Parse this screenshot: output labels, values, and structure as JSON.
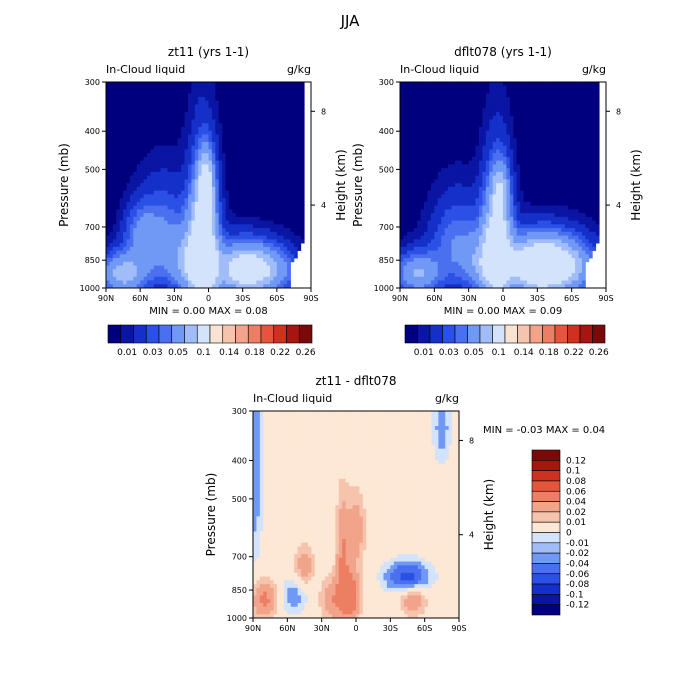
{
  "title": "JJA",
  "palettes": {
    "top": [
      "#00007e",
      "#0a15a3",
      "#1530c8",
      "#2a50e6",
      "#4a70f0",
      "#7098f5",
      "#a0bdf9",
      "#d2e3fb",
      "#fbe1d0",
      "#f6c4ad",
      "#f1a48a",
      "#ec7f63",
      "#e5553c",
      "#cd3120",
      "#a61510",
      "#7a0a0a"
    ],
    "diff": [
      "#00007e",
      "#0a15a3",
      "#1530c8",
      "#2a50e6",
      "#4a70f0",
      "#7098f5",
      "#a0bdf9",
      "#d2e3fb",
      "#fde7d5",
      "#f6c4ad",
      "#f1a48a",
      "#ec7f63",
      "#e5553c",
      "#cd3120",
      "#a61510",
      "#7a0a0a"
    ]
  },
  "chart_data": [
    {
      "type": "heatmap",
      "title": "zt11 (yrs 1-1)",
      "subtitle_left": "In-Cloud liquid",
      "units": "g/kg",
      "ylabel": "Pressure (mb)",
      "ylabel_right": "Height (km)",
      "x_ticks": [
        "90N",
        "60N",
        "30N",
        "0",
        "30S",
        "60S",
        "90S"
      ],
      "y_ticks": [
        "300",
        "400",
        "500",
        "700",
        "850",
        "1000"
      ],
      "y_ticks_right": [
        "8",
        "4"
      ],
      "stats": "MIN =   0.00   MAX =   0.08",
      "colorbar_labels": [
        "0.01",
        "0.03",
        "0.05",
        "0.1",
        "0.14",
        "0.18",
        "0.22",
        "0.26"
      ],
      "zlim": [
        0.0,
        0.08
      ],
      "scale": "top",
      "features": [
        {
          "lat": 5,
          "p": 800,
          "dlat": 9,
          "dp": 210,
          "amp": 0.06
        },
        {
          "lat": 2,
          "p": 540,
          "dlat": 5,
          "dp": 70,
          "amp": 0.03
        },
        {
          "lat": 2,
          "p": 880,
          "dlat": 6,
          "dp": 80,
          "amp": 0.02
        },
        {
          "lat": -45,
          "p": 900,
          "dlat": 20,
          "dp": 90,
          "amp": 0.04
        },
        {
          "lat": -25,
          "p": 900,
          "dlat": 15,
          "dp": 100,
          "amp": 0.025
        },
        {
          "lat": 40,
          "p": 760,
          "dlat": 16,
          "dp": 150,
          "amp": 0.022
        },
        {
          "lat": 75,
          "p": 920,
          "dlat": 14,
          "dp": 80,
          "amp": 0.035
        },
        {
          "lat": 60,
          "p": 720,
          "dlat": 10,
          "dp": 80,
          "amp": 0.015
        },
        {
          "lat": 20,
          "p": 880,
          "dlat": 10,
          "dp": 100,
          "amp": 0.02
        }
      ]
    },
    {
      "type": "heatmap",
      "title": "dflt078 (yrs 1-1)",
      "subtitle_left": "In-Cloud liquid",
      "units": "g/kg",
      "ylabel": "Pressure (mb)",
      "ylabel_right": "Height (km)",
      "x_ticks": [
        "90N",
        "60N",
        "30N",
        "0",
        "30S",
        "60S",
        "90S"
      ],
      "y_ticks": [
        "300",
        "400",
        "500",
        "700",
        "850",
        "1000"
      ],
      "y_ticks_right": [
        "8",
        "4"
      ],
      "stats": "MIN =   0.00   MAX =   0.09",
      "colorbar_labels": [
        "0.01",
        "0.03",
        "0.05",
        "0.1",
        "0.14",
        "0.18",
        "0.22",
        "0.26"
      ],
      "zlim": [
        0.0,
        0.09
      ],
      "scale": "top",
      "features": [
        {
          "lat": 5,
          "p": 800,
          "dlat": 9,
          "dp": 200,
          "amp": 0.055
        },
        {
          "lat": 2,
          "p": 560,
          "dlat": 5,
          "dp": 60,
          "amp": 0.02
        },
        {
          "lat": -45,
          "p": 880,
          "dlat": 22,
          "dp": 100,
          "amp": 0.055
        },
        {
          "lat": -25,
          "p": 880,
          "dlat": 15,
          "dp": 100,
          "amp": 0.03
        },
        {
          "lat": 40,
          "p": 780,
          "dlat": 16,
          "dp": 140,
          "amp": 0.02
        },
        {
          "lat": 75,
          "p": 920,
          "dlat": 14,
          "dp": 80,
          "amp": 0.03
        },
        {
          "lat": 20,
          "p": 880,
          "dlat": 10,
          "dp": 100,
          "amp": 0.018
        }
      ]
    },
    {
      "type": "heatmap",
      "title": "zt11 - dflt078",
      "subtitle_left": "In-Cloud liquid",
      "units": "g/kg",
      "ylabel": "Pressure (mb)",
      "ylabel_right": "Height (km)",
      "x_ticks": [
        "90N",
        "60N",
        "30N",
        "0",
        "30S",
        "60S",
        "90S"
      ],
      "y_ticks": [
        "300",
        "400",
        "500",
        "700",
        "850",
        "1000"
      ],
      "y_ticks_right": [
        "8",
        "4"
      ],
      "stats": "MIN =   -0.03   MAX =   0.04",
      "colorbar_labels": [
        "0.12",
        "0.1",
        "0.08",
        "0.06",
        "0.04",
        "0.02",
        "0.01",
        "0",
        "-0.01",
        "-0.02",
        "-0.04",
        "-0.06",
        "-0.08",
        "-0.1",
        "-0.12"
      ],
      "zlim": [
        -0.03,
        0.04
      ],
      "scale": "diff",
      "features": [
        {
          "lat": 5,
          "p": 880,
          "dlat": 6,
          "dp": 90,
          "amp": 0.035
        },
        {
          "lat": 12,
          "p": 680,
          "dlat": 4,
          "dp": 150,
          "amp": 0.02
        },
        {
          "lat": 0,
          "p": 600,
          "dlat": 6,
          "dp": 90,
          "amp": 0.018
        },
        {
          "lat": 20,
          "p": 900,
          "dlat": 8,
          "dp": 80,
          "amp": 0.02
        },
        {
          "lat": 45,
          "p": 740,
          "dlat": 6,
          "dp": 60,
          "amp": 0.018
        },
        {
          "lat": 80,
          "p": 900,
          "dlat": 8,
          "dp": 70,
          "amp": 0.025
        },
        {
          "lat": -50,
          "p": 900,
          "dlat": 8,
          "dp": 60,
          "amp": 0.02
        },
        {
          "lat": -45,
          "p": 790,
          "dlat": 12,
          "dp": 45,
          "amp": -0.032
        },
        {
          "lat": 55,
          "p": 880,
          "dlat": 8,
          "dp": 60,
          "amp": -0.012
        },
        {
          "lat": -75,
          "p": 330,
          "dlat": 5,
          "dp": 50,
          "amp": -0.012
        },
        {
          "lat": 88,
          "p": 420,
          "dlat": 4,
          "dp": 200,
          "amp": -0.012
        }
      ]
    }
  ]
}
